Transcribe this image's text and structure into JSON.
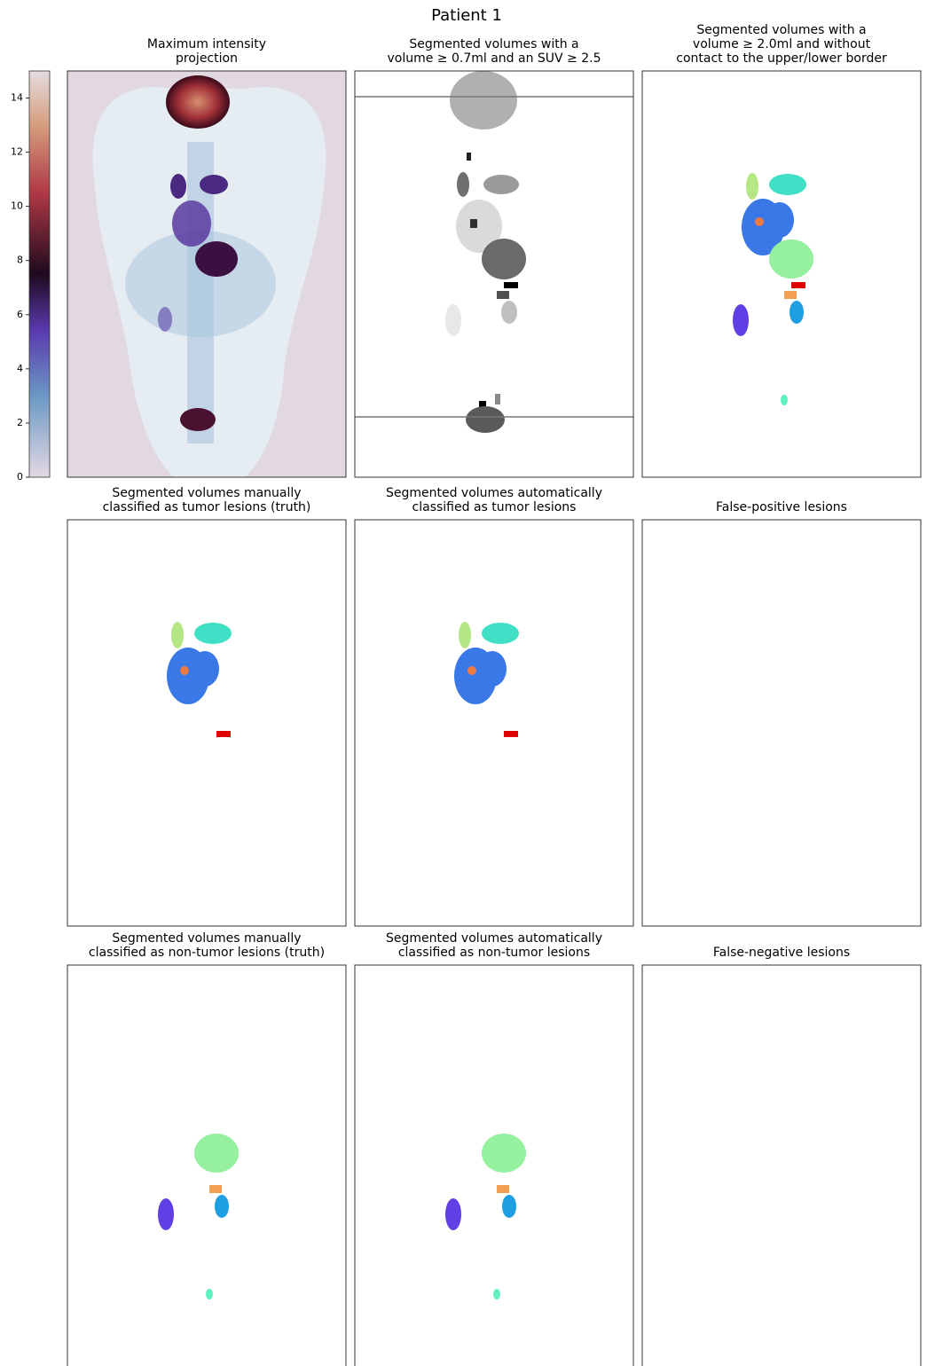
{
  "title": "Patient 1",
  "colorbar": {
    "lim": [
      0,
      15
    ],
    "ticks": [
      0,
      2,
      4,
      6,
      8,
      10,
      12,
      14
    ]
  },
  "panels": [
    {
      "title": [
        "Maximum intensity",
        "projection"
      ]
    },
    {
      "title": [
        "Segmented volumes with a",
        "volume ≥ 0.7ml and an SUV ≥ 2.5"
      ]
    },
    {
      "title": [
        "Segmented volumes with a",
        "volume ≥ 2.0ml and without",
        "contact to the upper/lower border"
      ]
    },
    {
      "title": [
        "Segmented volumes manually",
        "classified as tumor lesions (truth)"
      ]
    },
    {
      "title": [
        "Segmented volumes automatically",
        "classified as tumor lesions"
      ]
    },
    {
      "title": [
        "False-positive lesions"
      ]
    },
    {
      "title": [
        "Segmented volumes manually",
        "classified as non-tumor lesions (truth)"
      ]
    },
    {
      "title": [
        "Segmented volumes automatically",
        "classified as non-tumor lesions"
      ]
    },
    {
      "title": [
        "False-negative lesions"
      ]
    }
  ]
}
